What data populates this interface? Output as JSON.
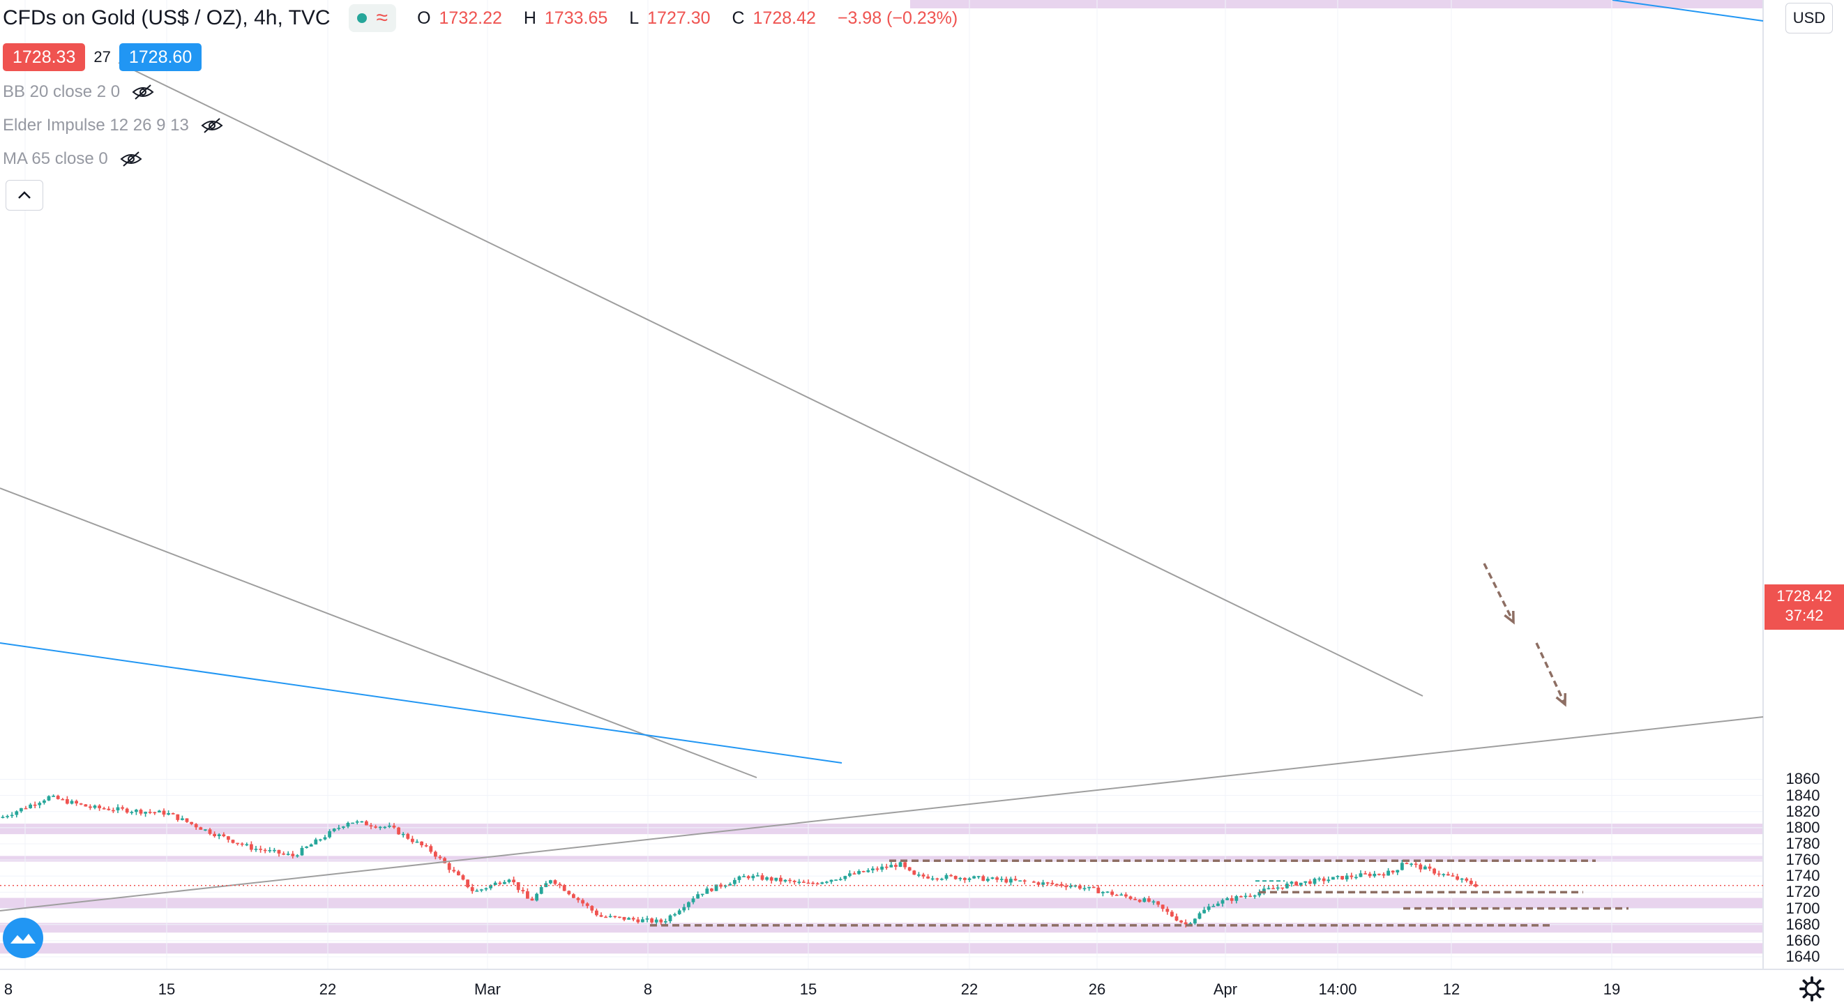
{
  "header": {
    "symbol": "CFDs on Gold (US$ / OZ)",
    "interval": "4h",
    "source": "TVC",
    "ohlc": {
      "o_key": "O",
      "o": "1732.22",
      "h_key": "H",
      "h": "1733.65",
      "l_key": "L",
      "l": "1727.30",
      "c_key": "C",
      "c": "1728.42",
      "change": "−3.98 (−0.23%)"
    }
  },
  "trade": {
    "sell_price": "1728.33",
    "spread": "27",
    "buy_price": "1728.60"
  },
  "indicators": [
    {
      "label": "BB 20 close 2 0"
    },
    {
      "label": "Elder Impulse 12 26 9 13"
    },
    {
      "label": "MA 65 close 0"
    }
  ],
  "price_axis": {
    "currency": "USD",
    "ticks": [
      "1860",
      "1840",
      "1820",
      "1800",
      "1780",
      "1760",
      "1740",
      "1720",
      "1700",
      "1680",
      "1660",
      "1640"
    ],
    "last_price": "1728.42",
    "countdown": "37:42"
  },
  "time_axis": {
    "ticks": [
      "8",
      "15",
      "22",
      "Mar",
      "8",
      "15",
      "22",
      "26",
      "Apr",
      "14:00",
      "12",
      "19"
    ]
  },
  "colors": {
    "up": "#26a69a",
    "down": "#ef5350",
    "zone": "#e8d4ee",
    "level_line": "#8d6e63",
    "trendline": "#9e9e9e",
    "ma_line": "#2196f3"
  },
  "icons": {
    "logo": "tradingview-logo-icon",
    "settings": "gear-icon",
    "eye": "eye-crossed-icon",
    "collapse": "chevron-up-icon"
  },
  "chart_data": {
    "type": "candlestick",
    "title": "CFDs on Gold (US$ / OZ)",
    "y_unit": "USD",
    "ylim": [
      1636,
      1870
    ],
    "x_labels": [
      "8",
      "15",
      "22",
      "Mar",
      "8",
      "15",
      "22",
      "26",
      "Apr",
      "14:00",
      "12",
      "19"
    ],
    "price_path_approx": [
      {
        "t": "Feb 8",
        "price": 1812
      },
      {
        "t": "Feb 10",
        "price": 1838
      },
      {
        "t": "Feb 12",
        "price": 1825
      },
      {
        "t": "Feb 15",
        "price": 1818
      },
      {
        "t": "Feb 17",
        "price": 1795
      },
      {
        "t": "Feb 19",
        "price": 1775
      },
      {
        "t": "Feb 21",
        "price": 1765
      },
      {
        "t": "Feb 23",
        "price": 1808
      },
      {
        "t": "Feb 25",
        "price": 1800
      },
      {
        "t": "Feb 26",
        "price": 1770
      },
      {
        "t": "Mar 1",
        "price": 1720
      },
      {
        "t": "Mar 2",
        "price": 1738
      },
      {
        "t": "Mar 4",
        "price": 1708
      },
      {
        "t": "Mar 5",
        "price": 1737
      },
      {
        "t": "Mar 7",
        "price": 1690
      },
      {
        "t": "Mar 8",
        "price": 1683
      },
      {
        "t": "Mar 10",
        "price": 1718
      },
      {
        "t": "Mar 12",
        "price": 1740
      },
      {
        "t": "Mar 15",
        "price": 1730
      },
      {
        "t": "Mar 18",
        "price": 1755
      },
      {
        "t": "Mar 19",
        "price": 1740
      },
      {
        "t": "Mar 22",
        "price": 1738
      },
      {
        "t": "Mar 26",
        "price": 1728
      },
      {
        "t": "Mar 29",
        "price": 1708
      },
      {
        "t": "Mar 31",
        "price": 1680
      },
      {
        "t": "Apr 1",
        "price": 1706
      },
      {
        "t": "Apr 5",
        "price": 1730
      },
      {
        "t": "Apr 7",
        "price": 1740
      },
      {
        "t": "Apr 8",
        "price": 1745
      },
      {
        "t": "Apr 9",
        "price": 1758
      },
      {
        "t": "Apr 12",
        "price": 1728
      }
    ],
    "zones": [
      [
        1792,
        1805
      ],
      [
        1758,
        1765
      ],
      [
        1700,
        1713
      ],
      [
        1670,
        1682
      ],
      [
        1644,
        1657
      ]
    ],
    "levels": [
      1759,
      1720,
      1700,
      1679
    ],
    "last_price": 1728.42
  }
}
